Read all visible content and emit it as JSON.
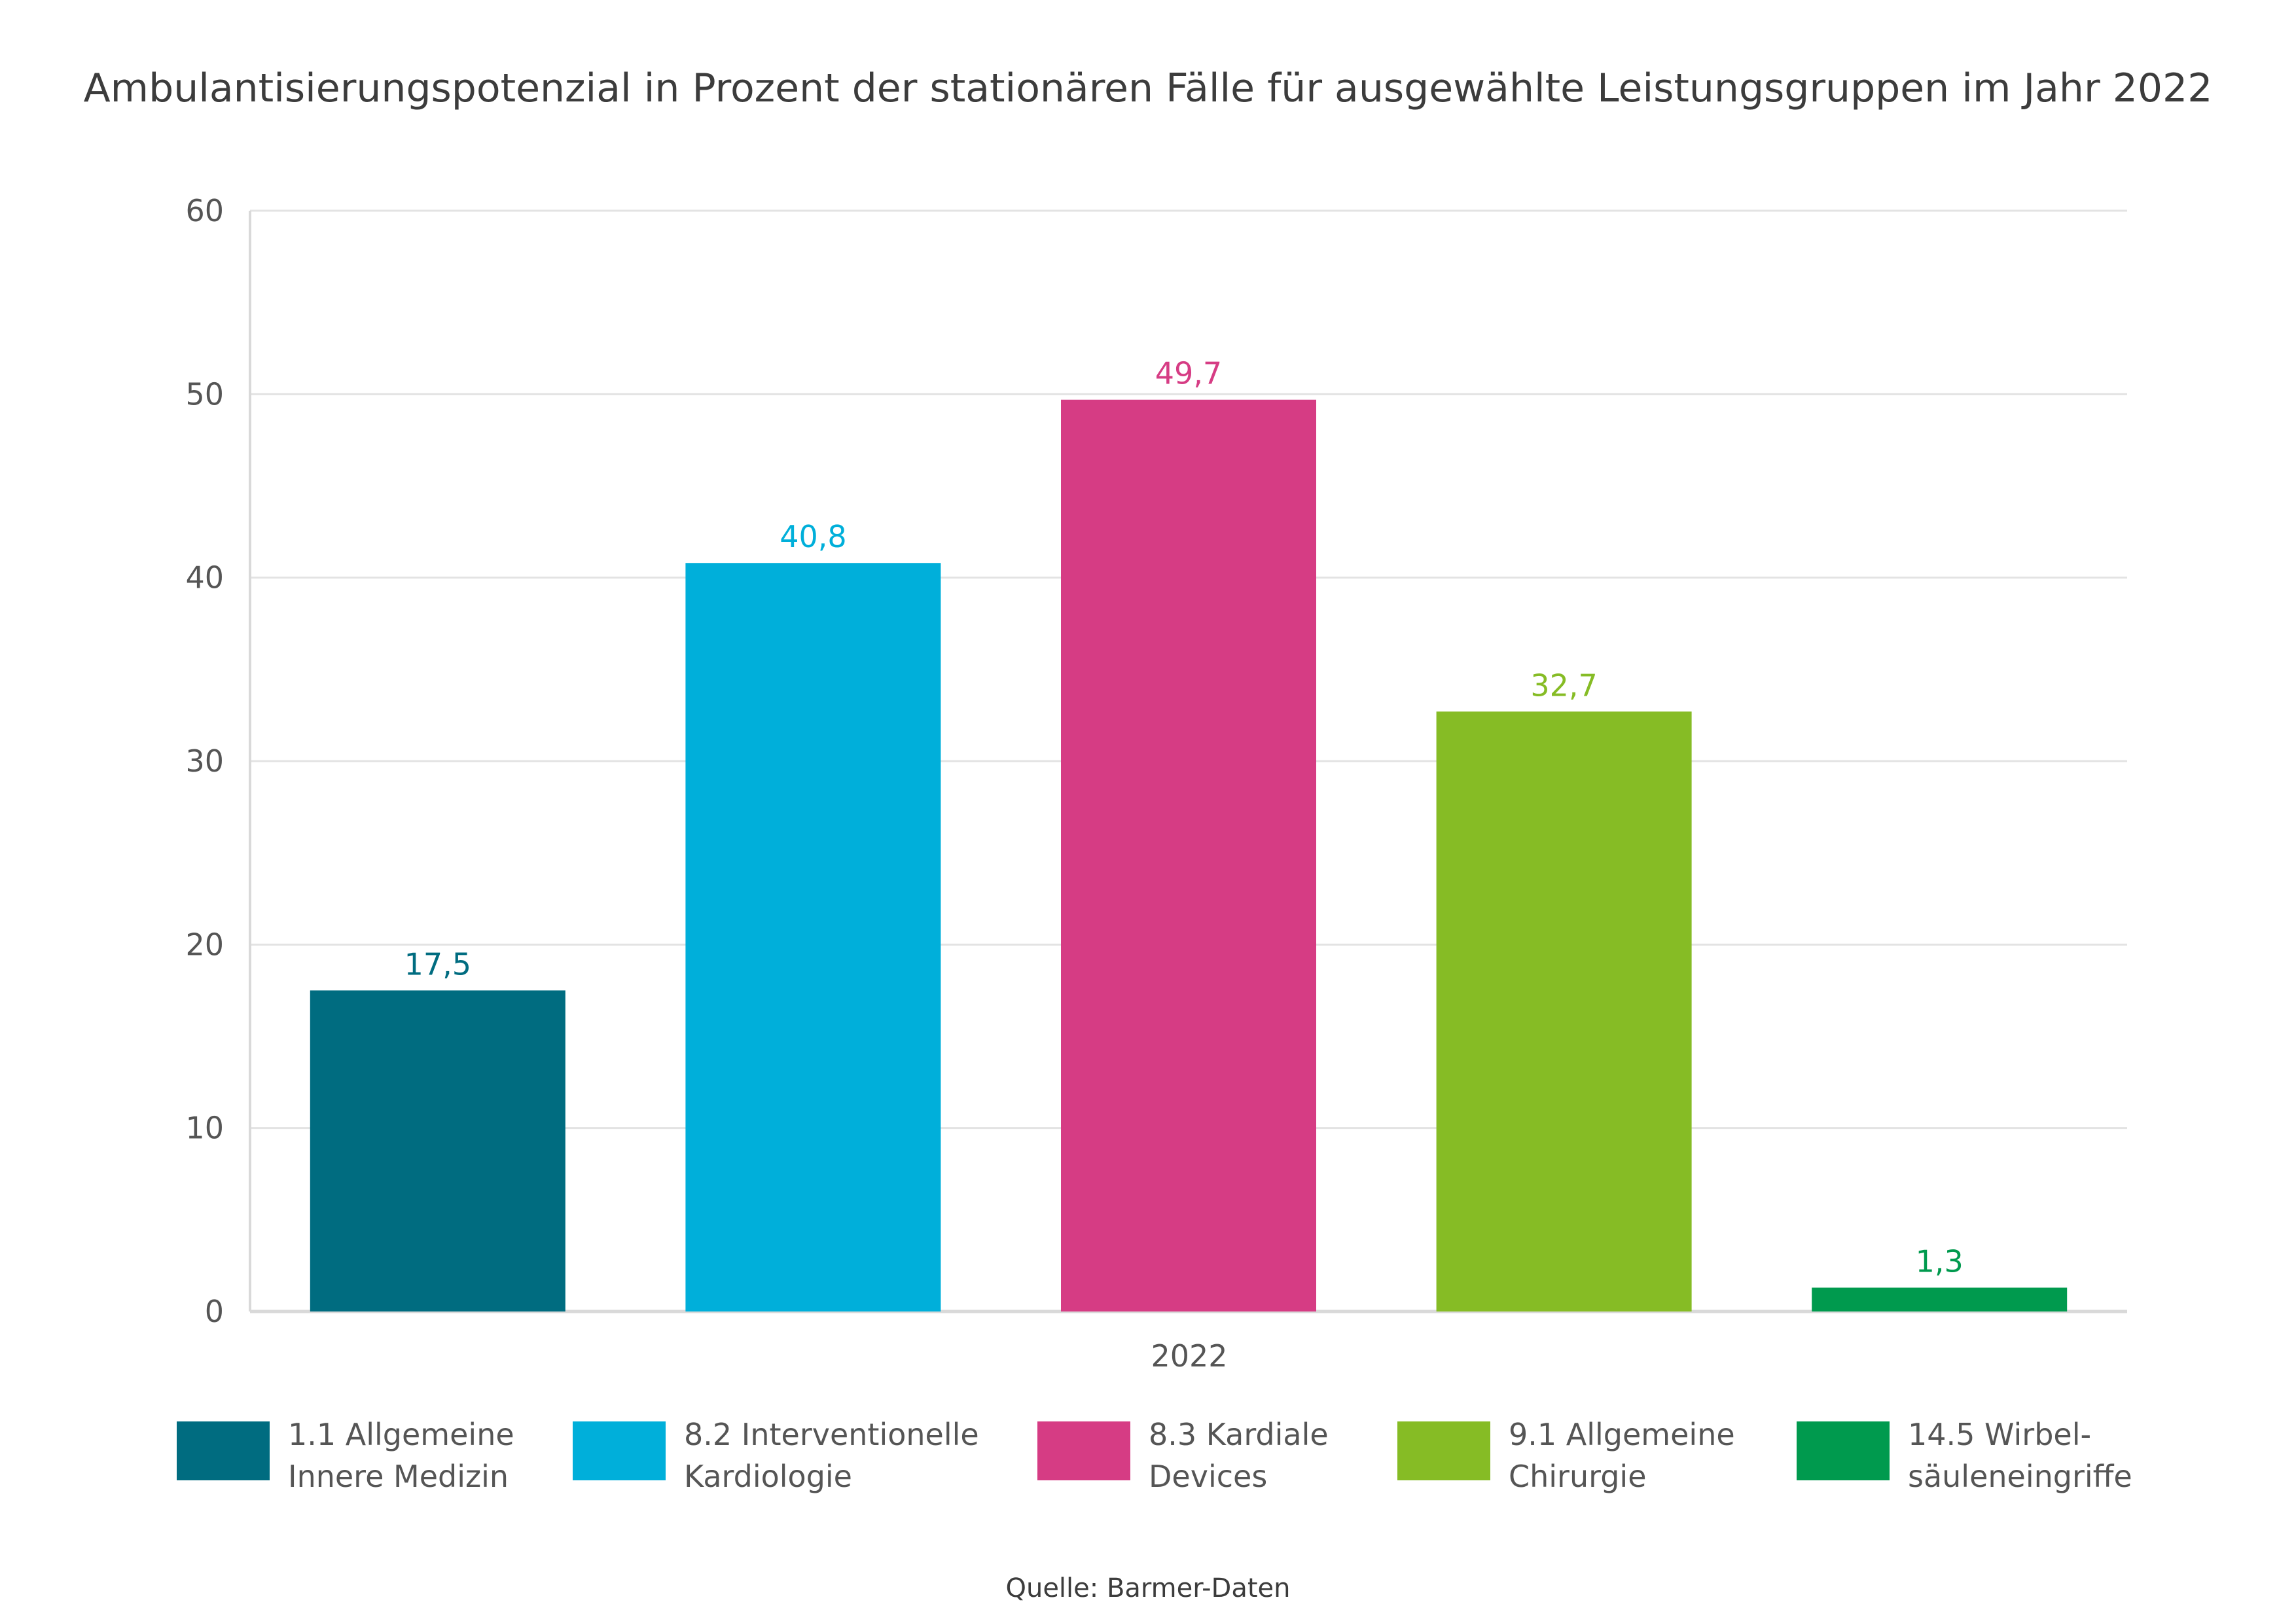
{
  "chart_data": {
    "type": "bar",
    "title": "Ambulantisierungspotenzial in Prozent der stationären Fälle für ausgewählte Leistungsgruppen im Jahr 2022",
    "x_category": "2022",
    "ylim": [
      0,
      60
    ],
    "yticks": [
      "0",
      "10",
      "20",
      "30",
      "40",
      "50",
      "60"
    ],
    "grid": true,
    "legend_position": "bottom",
    "source": "Quelle: Barmer-Daten",
    "series": [
      {
        "name": "1.1 Allgemeine\nInnere Medizin",
        "value": 17.5,
        "label": "17,5",
        "color": "#006c80"
      },
      {
        "name": "8.2 Interventionelle\nKardiologie",
        "value": 40.8,
        "label": "40,8",
        "color": "#00afda"
      },
      {
        "name": "8.3 Kardiale\nDevices",
        "value": 49.7,
        "label": "49,7",
        "color": "#d63c84"
      },
      {
        "name": "9.1 Allgemeine\nChirurgie",
        "value": 32.7,
        "label": "32,7",
        "color": "#86bc25"
      },
      {
        "name": "14.5 Wirbel-\nsäuleneingriffe",
        "value": 1.3,
        "label": "1,3",
        "color": "#009a4e"
      }
    ]
  }
}
